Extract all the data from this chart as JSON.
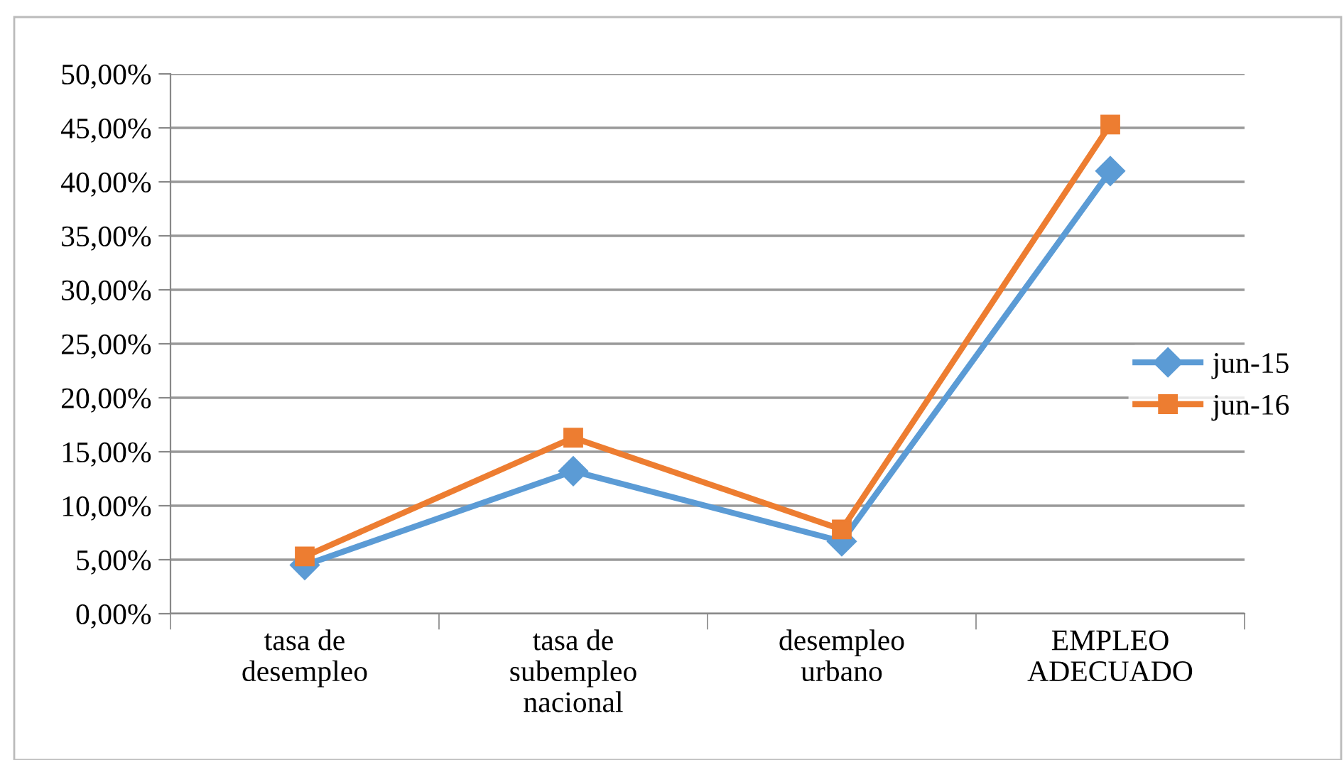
{
  "chart_data": {
    "type": "line",
    "categories": [
      "tasa de\ndesempleo",
      "tasa de\nsubempleo\nnacional",
      "desempleo\nurbano",
      "EMPLEO\nADECUADO"
    ],
    "series": [
      {
        "name": "jun-15",
        "color": "#5b9bd5",
        "marker": "diamond",
        "values": [
          4.5,
          13.2,
          6.7,
          41.0
        ]
      },
      {
        "name": "jun-16",
        "color": "#ed7d31",
        "marker": "square",
        "values": [
          5.3,
          16.3,
          7.8,
          45.3
        ]
      }
    ],
    "ylim": [
      0,
      50
    ],
    "yticks": [
      {
        "value": 0,
        "label": "0,00%"
      },
      {
        "value": 5,
        "label": "5,00%"
      },
      {
        "value": 10,
        "label": "10,00%"
      },
      {
        "value": 15,
        "label": "15,00%"
      },
      {
        "value": 20,
        "label": "20,00%"
      },
      {
        "value": 25,
        "label": "25,00%"
      },
      {
        "value": 30,
        "label": "30,00%"
      },
      {
        "value": 35,
        "label": "35,00%"
      },
      {
        "value": 40,
        "label": "40,00%"
      },
      {
        "value": 45,
        "label": "45,00%"
      },
      {
        "value": 50,
        "label": "50,00%"
      }
    ],
    "grid": "y",
    "legend": "right",
    "line_style": "solid"
  }
}
